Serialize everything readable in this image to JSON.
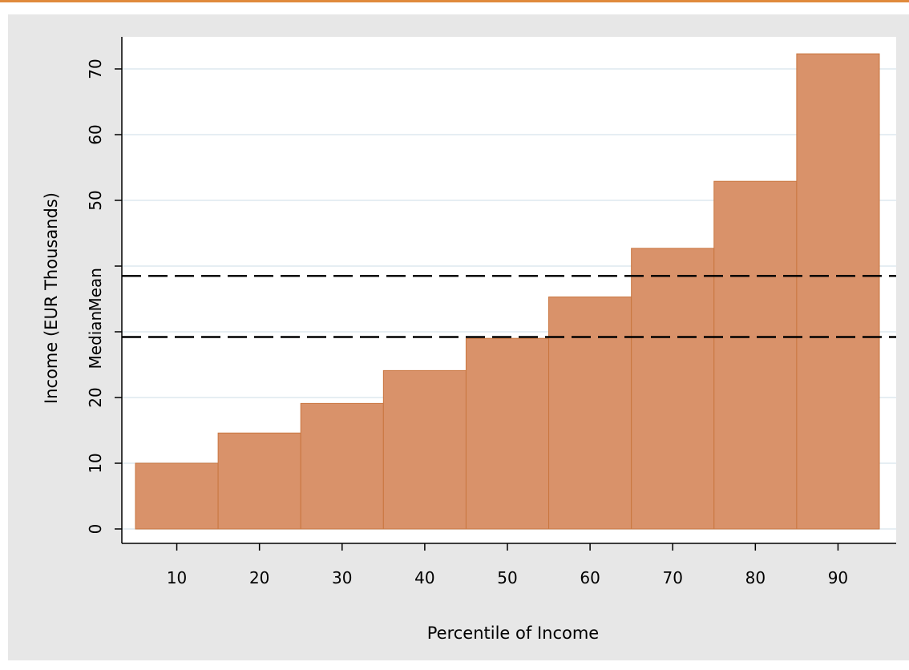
{
  "chart_data": {
    "type": "bar",
    "x": [
      10,
      20,
      30,
      40,
      50,
      60,
      70,
      80,
      90
    ],
    "values": [
      10,
      14.6,
      19.1,
      24.1,
      29,
      35.3,
      42.7,
      52.9,
      72.3
    ],
    "bar_width": 10,
    "xlabel": "Percentile of Income",
    "ylabel": "Income (EUR Thousands)",
    "xticks": [
      "10",
      "20",
      "30",
      "40",
      "50",
      "60",
      "70",
      "80",
      "90"
    ],
    "yticks": [
      "0",
      "10",
      "20",
      "",
      "",
      "50",
      "60",
      "70"
    ],
    "xlim": [
      5,
      95
    ],
    "ylim": [
      0,
      70
    ],
    "grid": true,
    "reference_lines": [
      {
        "label": "Median",
        "value": 29.2,
        "style": "dashed"
      },
      {
        "label": "Mean",
        "value": 38.5,
        "style": "dashed"
      }
    ],
    "colors": {
      "bar_fill": "#d9926a",
      "bar_edge": "#c9763f",
      "background": "#e7e7e7",
      "plot_background": "#ffffff",
      "gridline": "#e6eef3",
      "top_rule": "#e08a3c"
    }
  }
}
